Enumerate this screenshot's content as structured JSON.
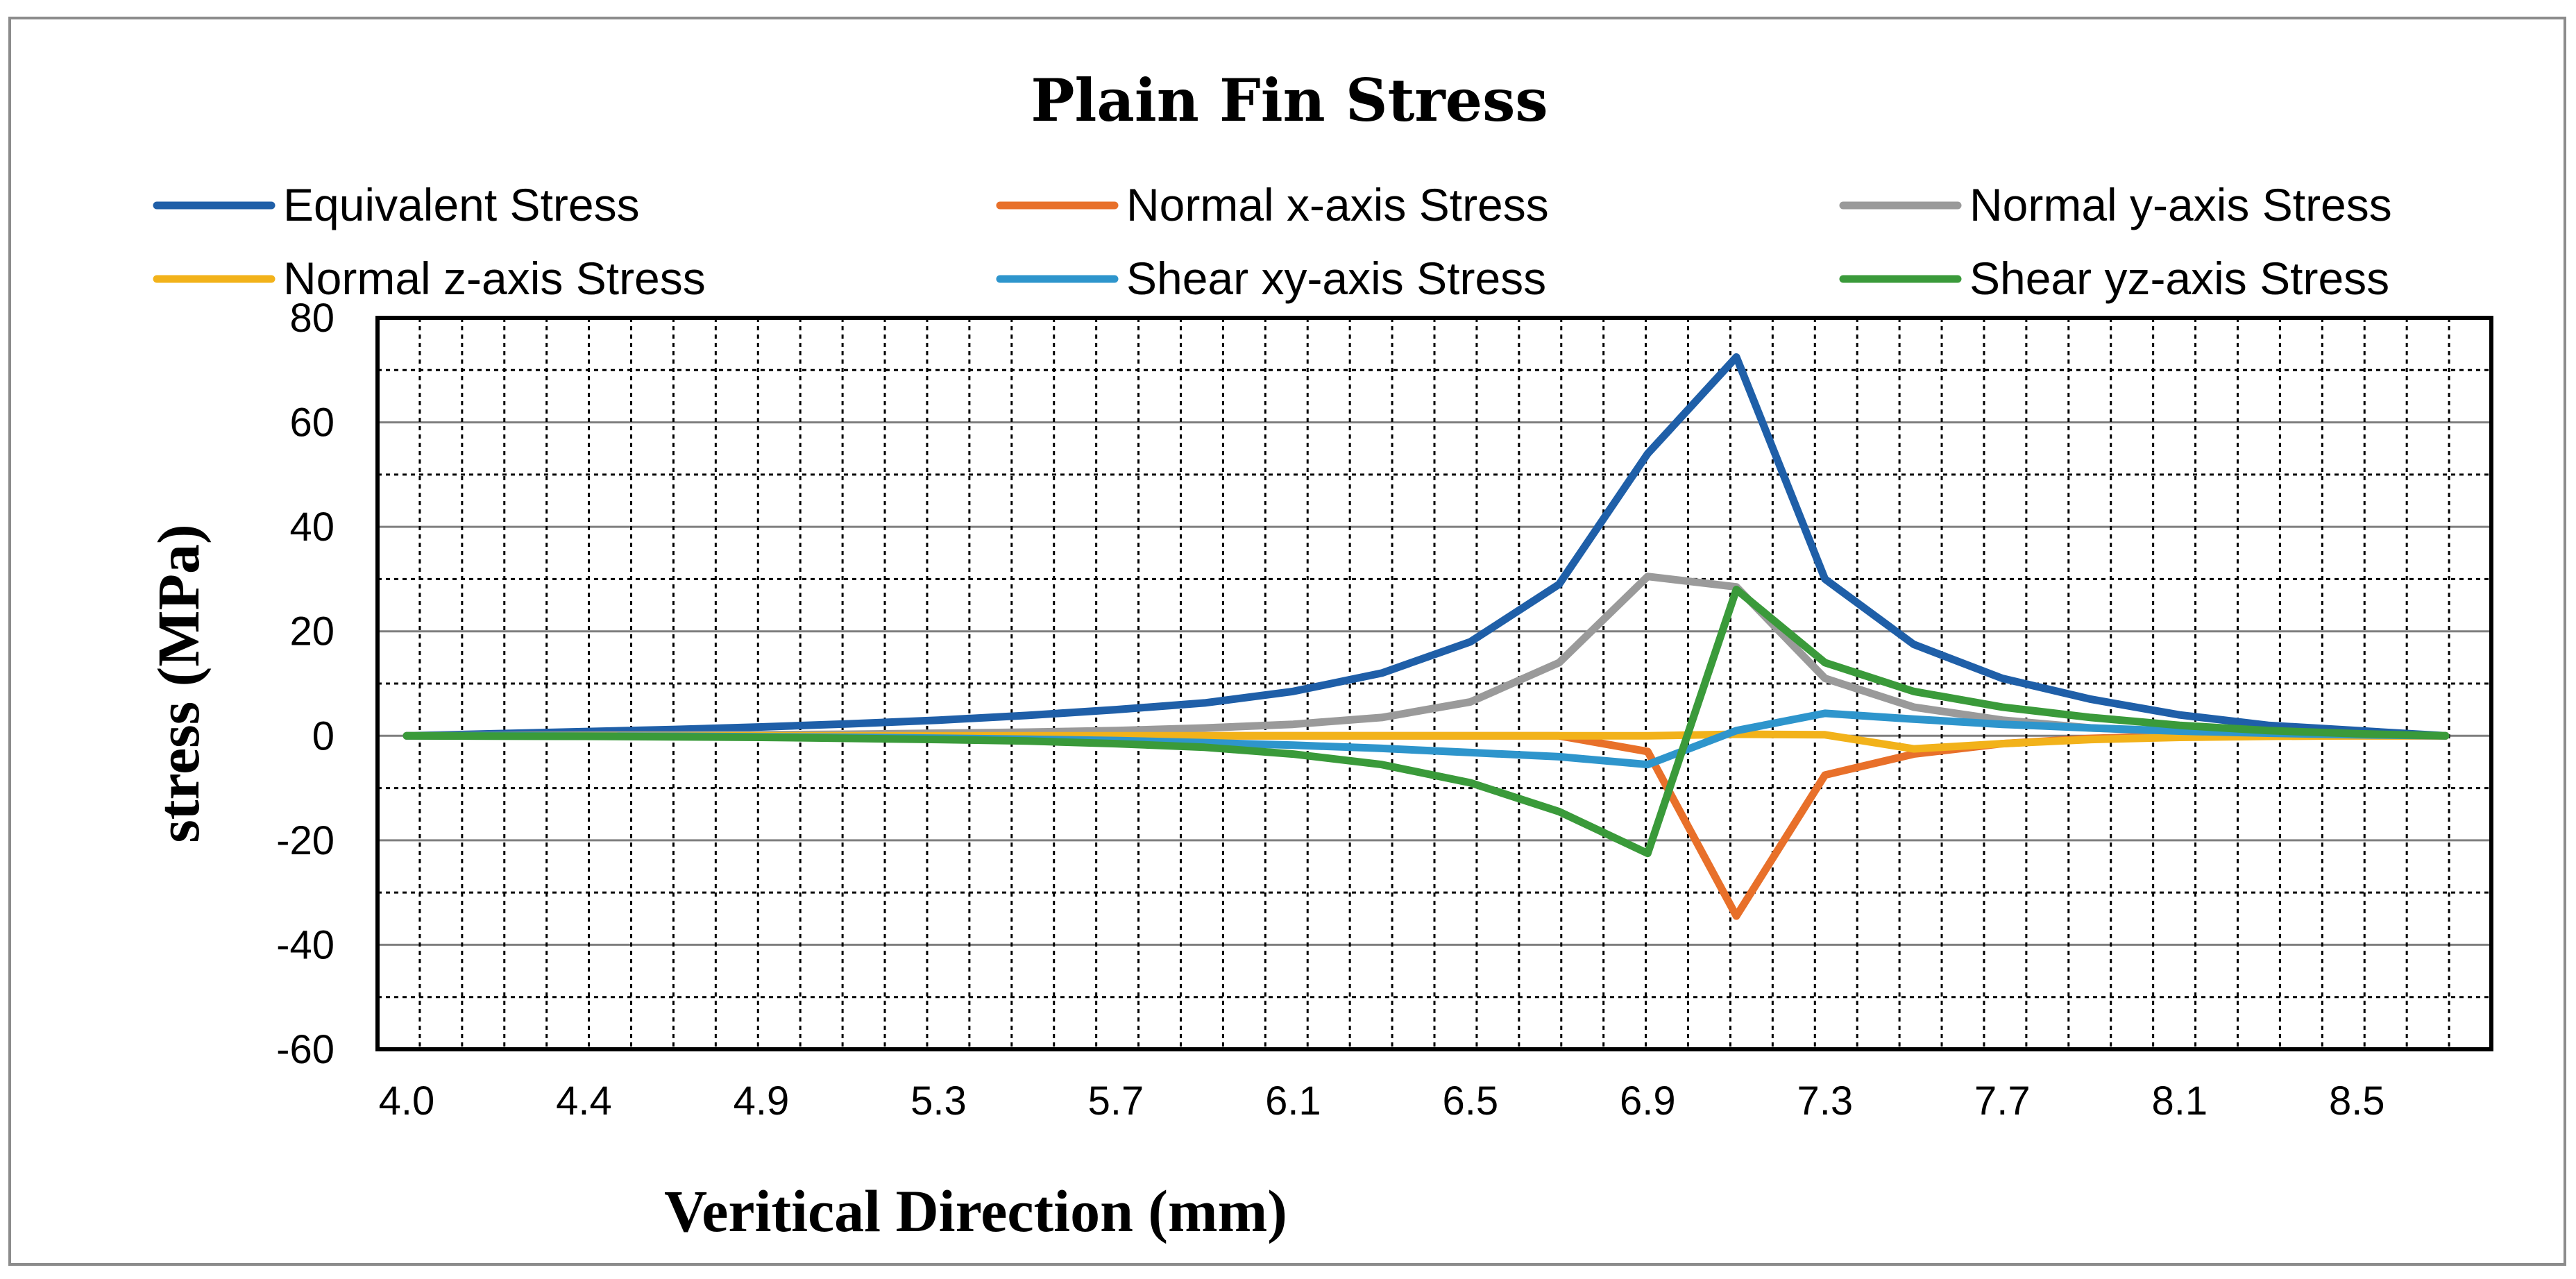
{
  "chart_data": {
    "type": "line",
    "title": "Plain Fin Stress",
    "xlabel": "Veritical Direction (mm)",
    "ylabel": "stress (MPa)",
    "ylim": [
      -60,
      80
    ],
    "yticks": [
      "80",
      "60",
      "40",
      "20",
      "0",
      "-20",
      "-40",
      "-60"
    ],
    "xtick_labels": [
      "4.0",
      "4.4",
      "4.9",
      "5.3",
      "5.7",
      "6.1",
      "6.5",
      "6.9",
      "7.3",
      "7.7",
      "8.1",
      "8.5"
    ],
    "x": [
      4.0,
      4.2,
      4.4,
      4.6,
      4.9,
      5.1,
      5.3,
      5.5,
      5.7,
      5.9,
      6.1,
      6.3,
      6.5,
      6.7,
      6.9,
      7.1,
      7.3,
      7.5,
      7.7,
      7.9,
      8.1,
      8.3,
      8.5,
      8.7
    ],
    "grid": true,
    "legend_position": "top",
    "series": [
      {
        "name": "Equivalent Stress",
        "color": "#1f5fa8",
        "values": [
          0,
          0.4,
          0.8,
          1.2,
          1.7,
          2.3,
          3.0,
          3.9,
          5.0,
          6.3,
          8.5,
          12,
          18,
          29,
          54,
          72.5,
          30,
          17.5,
          11,
          7,
          4,
          2,
          1,
          0
        ]
      },
      {
        "name": "Normal x-axis Stress",
        "color": "#e8702a",
        "values": [
          0,
          0,
          0,
          0,
          0,
          0,
          0,
          0,
          0,
          0,
          0,
          0,
          0,
          0,
          -3,
          -34.5,
          -7.5,
          -3.5,
          -1.5,
          -0.5,
          0,
          0,
          0,
          0
        ]
      },
      {
        "name": "Normal y-axis Stress",
        "color": "#9a9a9a",
        "values": [
          0,
          0.05,
          0.1,
          0.15,
          0.2,
          0.3,
          0.5,
          0.7,
          1.0,
          1.5,
          2.2,
          3.5,
          6.5,
          14,
          30.5,
          28.5,
          11,
          5.5,
          3,
          1.5,
          0.8,
          0.3,
          0.1,
          0
        ]
      },
      {
        "name": "Normal z-axis Stress",
        "color": "#f2b21a",
        "values": [
          0,
          0,
          0,
          0,
          0,
          0,
          0,
          0,
          0,
          0,
          0,
          0,
          0,
          0,
          0,
          0.3,
          0.2,
          -2.5,
          -1.5,
          -0.7,
          -0.3,
          -0.1,
          0,
          0
        ]
      },
      {
        "name": "Shear xy-axis Stress",
        "color": "#2e95cc",
        "values": [
          0,
          0,
          -0.05,
          -0.1,
          -0.2,
          -0.3,
          -0.45,
          -0.65,
          -0.9,
          -1.3,
          -1.8,
          -2.4,
          -3.2,
          -4.0,
          -5.5,
          1.0,
          4.3,
          3.2,
          2.2,
          1.5,
          0.9,
          0.5,
          0.2,
          0
        ]
      },
      {
        "name": "Shear yz-axis Stress",
        "color": "#3a9a3a",
        "values": [
          0,
          -0.05,
          -0.1,
          -0.2,
          -0.3,
          -0.5,
          -0.7,
          -1.0,
          -1.5,
          -2.2,
          -3.5,
          -5.5,
          -9,
          -14.5,
          -22.5,
          28,
          14,
          8.5,
          5.5,
          3.5,
          2,
          1,
          0.4,
          0
        ]
      }
    ]
  }
}
